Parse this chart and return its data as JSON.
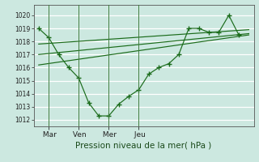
{
  "xlabel": "Pression niveau de la mer( hPa )",
  "background_color": "#cce8e0",
  "grid_color": "#ffffff",
  "line_color": "#1a6b1a",
  "ylim": [
    1011.5,
    1020.8
  ],
  "yticks": [
    1012,
    1013,
    1014,
    1015,
    1016,
    1017,
    1018,
    1019,
    1020
  ],
  "xtick_labels": [
    " Mar",
    " Ven",
    " Mer",
    " Jeu"
  ],
  "xtick_positions": [
    1,
    4,
    7,
    10
  ],
  "vline_x": [
    1,
    4,
    7,
    10
  ],
  "main_x": [
    0,
    1,
    2,
    3,
    4,
    5,
    6,
    7,
    8,
    9,
    10,
    11,
    12,
    13,
    14,
    15,
    16,
    17,
    18,
    19,
    20
  ],
  "main_y": [
    1019.0,
    1018.3,
    1017.0,
    1016.0,
    1015.2,
    1013.3,
    1012.3,
    1012.3,
    1013.2,
    1013.8,
    1014.3,
    1015.5,
    1016.0,
    1016.3,
    1017.0,
    1019.0,
    1019.0,
    1018.7,
    1018.7,
    1020.0,
    1018.5
  ],
  "trend1_x": [
    0,
    21
  ],
  "trend1_y": [
    1017.0,
    1018.6
  ],
  "trend2_x": [
    0,
    21
  ],
  "trend2_y": [
    1017.8,
    1018.9
  ],
  "trend3_x": [
    0,
    21
  ],
  "trend3_y": [
    1016.2,
    1018.5
  ],
  "xlim": [
    -0.5,
    21.5
  ],
  "figsize": [
    3.2,
    2.0
  ],
  "dpi": 100
}
